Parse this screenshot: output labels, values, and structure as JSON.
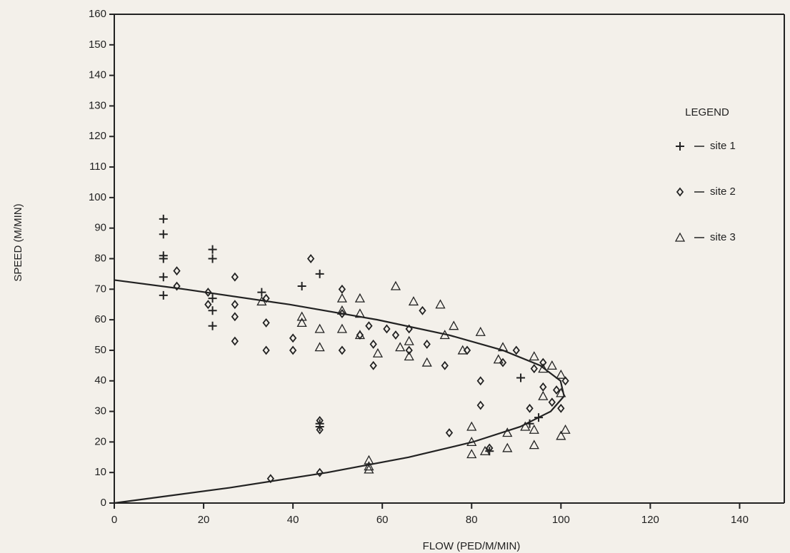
{
  "chart_data": {
    "type": "scatter",
    "x_label": "FLOW (PED/M/MIN)",
    "y_label": "SPEED (M/MIN)",
    "legend_title": "LEGEND",
    "legend_position": "upper right",
    "xlim": [
      0,
      150
    ],
    "ylim": [
      0,
      160
    ],
    "xticks": [
      0,
      20,
      40,
      60,
      80,
      100,
      120,
      140
    ],
    "yticks": [
      0,
      10,
      20,
      30,
      40,
      50,
      60,
      70,
      80,
      90,
      100,
      110,
      120,
      130,
      140,
      150,
      160
    ],
    "series": [
      {
        "name": "site 1",
        "marker": "plus",
        "color": "#222222",
        "x": [
          11,
          11,
          11,
          11,
          11,
          11,
          22,
          22,
          22,
          22,
          22,
          33,
          42,
          46,
          46,
          46,
          91,
          95,
          84,
          93
        ],
        "values": [
          93,
          88,
          81,
          80,
          74,
          68,
          83,
          80,
          67,
          63,
          58,
          69,
          71,
          75,
          26,
          25,
          41,
          28,
          17,
          26
        ]
      },
      {
        "name": "site 2",
        "marker": "diamond",
        "color": "#222222",
        "x": [
          14,
          14,
          21,
          21,
          27,
          27,
          27,
          27,
          34,
          34,
          34,
          40,
          40,
          44,
          46,
          46,
          46,
          51,
          51,
          51,
          55,
          57,
          58,
          58,
          61,
          63,
          66,
          66,
          69,
          70,
          74,
          75,
          79,
          82,
          82,
          84,
          35,
          87,
          90,
          93,
          96,
          98,
          99,
          100,
          101,
          94,
          96
        ],
        "values": [
          76,
          71,
          69,
          65,
          74,
          65,
          61,
          53,
          59,
          67,
          50,
          54,
          50,
          80,
          27,
          24,
          10,
          70,
          62,
          50,
          55,
          58,
          45,
          52,
          57,
          55,
          57,
          50,
          63,
          52,
          45,
          23,
          50,
          40,
          32,
          18,
          8,
          46,
          50,
          31,
          38,
          33,
          37,
          31,
          40,
          44,
          46
        ]
      },
      {
        "name": "site 3",
        "marker": "triangle",
        "color": "#222222",
        "x": [
          33,
          42,
          42,
          46,
          46,
          51,
          51,
          51,
          55,
          55,
          55,
          57,
          57,
          57,
          59,
          63,
          64,
          66,
          66,
          67,
          70,
          73,
          74,
          76,
          78,
          82,
          80,
          80,
          80,
          83,
          86,
          87,
          88,
          88,
          94,
          94,
          94,
          96,
          98,
          100,
          100,
          100,
          101,
          92,
          96
        ],
        "values": [
          66,
          61,
          59,
          57,
          51,
          67,
          63,
          57,
          55,
          67,
          62,
          14,
          12,
          11,
          49,
          71,
          51,
          48,
          53,
          66,
          46,
          65,
          55,
          58,
          50,
          56,
          25,
          20,
          16,
          17,
          47,
          51,
          23,
          18,
          24,
          19,
          48,
          44,
          45,
          42,
          36,
          22,
          24,
          25,
          35
        ]
      },
      {
        "marker": "line",
        "color": "#222222",
        "x": [
          0,
          25.8,
          47.7,
          65.9,
          80.3,
          90.9,
          97.7,
          100.7,
          99.9,
          95.4,
          87.0,
          74.9,
          58.9,
          39.2,
          15.7,
          0
        ],
        "values": [
          0,
          5,
          10,
          15,
          20,
          25,
          30,
          35,
          40,
          45,
          50,
          55,
          60,
          65,
          70,
          73
        ]
      }
    ]
  }
}
